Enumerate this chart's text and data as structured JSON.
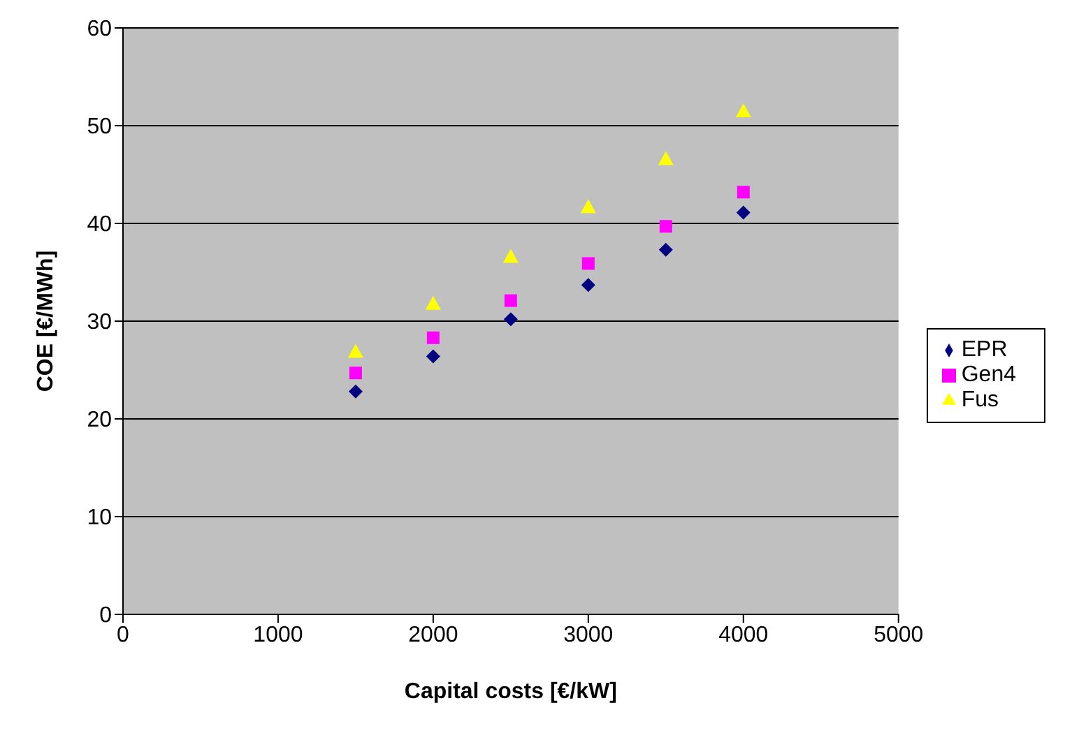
{
  "chart_data": {
    "type": "scatter",
    "xlabel": "Capital costs [€/kW]",
    "ylabel": "COE [€/MWh]",
    "x": [
      1500,
      2000,
      2500,
      3000,
      3500,
      4000
    ],
    "series": [
      {
        "name": "EPR",
        "color": "#000080",
        "marker": "diamond",
        "values": [
          22.8,
          26.4,
          30.2,
          33.7,
          37.3,
          41.1
        ]
      },
      {
        "name": "Gen4",
        "color": "#ff00ff",
        "marker": "square",
        "values": [
          24.7,
          28.3,
          32.1,
          35.9,
          39.7,
          43.2
        ]
      },
      {
        "name": "Fus",
        "color": "#ffff00",
        "marker": "triangle",
        "values": [
          26.9,
          31.8,
          36.6,
          41.7,
          46.6,
          51.5
        ]
      }
    ],
    "xlim": [
      0,
      5000
    ],
    "xticks": [
      0,
      1000,
      2000,
      3000,
      4000,
      5000
    ],
    "ylim": [
      0,
      60
    ],
    "yticks": [
      0,
      10,
      20,
      30,
      40,
      50,
      60
    ],
    "grid": "y",
    "legend": "right"
  }
}
